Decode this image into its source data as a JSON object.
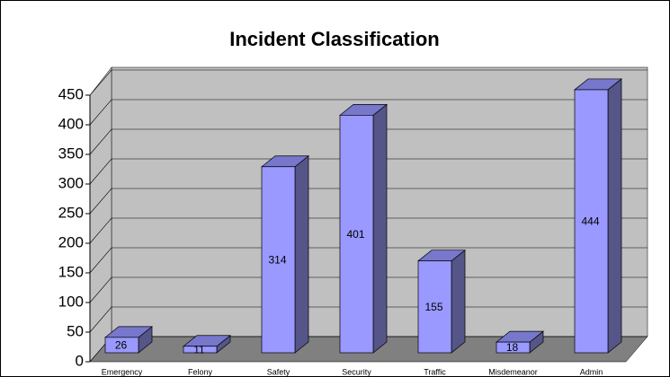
{
  "chart_data": {
    "type": "bar3d",
    "title": "Incident Classification",
    "categories": [
      "Emergency",
      "Felony",
      "Safety",
      "Security",
      "Traffic",
      "Misdemeanor",
      "Admin"
    ],
    "values": [
      26,
      11,
      314,
      401,
      155,
      18,
      444
    ],
    "color": "#9999ff",
    "ylim": [
      0,
      450
    ],
    "yticks": [
      0,
      50,
      100,
      150,
      200,
      250,
      300,
      350,
      400,
      450
    ],
    "grid": true
  }
}
